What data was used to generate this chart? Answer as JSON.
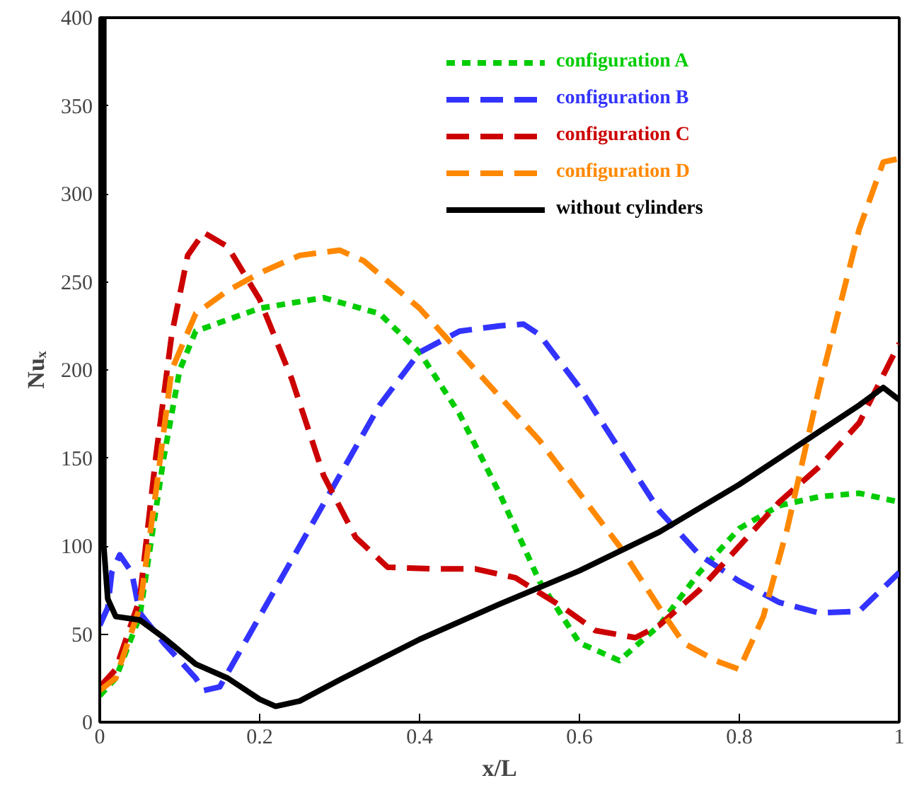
{
  "chart_data": {
    "type": "line",
    "xlabel": "x/L",
    "ylabel": "Nuₓ",
    "xlim": [
      0,
      1
    ],
    "ylim": [
      0,
      400
    ],
    "xticks": [
      0,
      0.2,
      0.4,
      0.6,
      0.8,
      1
    ],
    "yticks": [
      0,
      50,
      100,
      150,
      200,
      250,
      300,
      350,
      400
    ],
    "grid": false,
    "legend": "top right",
    "series": [
      {
        "name": "configuration A",
        "color": "#00cc00",
        "line_style": "dotted",
        "x": [
          0,
          0.02,
          0.05,
          0.08,
          0.1,
          0.12,
          0.2,
          0.28,
          0.35,
          0.4,
          0.45,
          0.5,
          0.55,
          0.6,
          0.65,
          0.7,
          0.75,
          0.8,
          0.85,
          0.9,
          0.95,
          1.0
        ],
        "values": [
          15,
          25,
          60,
          150,
          200,
          222,
          235,
          241,
          232,
          210,
          175,
          130,
          80,
          45,
          35,
          55,
          85,
          110,
          123,
          128,
          130,
          125
        ]
      },
      {
        "name": "configuration B",
        "color": "#3333ff",
        "line_style": "dashed",
        "x": [
          0,
          0.01,
          0.015,
          0.025,
          0.04,
          0.05,
          0.08,
          0.1,
          0.12,
          0.13,
          0.15,
          0.2,
          0.25,
          0.3,
          0.35,
          0.4,
          0.45,
          0.5,
          0.53,
          0.55,
          0.6,
          0.65,
          0.7,
          0.75,
          0.8,
          0.85,
          0.9,
          0.95,
          1.0
        ],
        "values": [
          55,
          65,
          85,
          95,
          85,
          62,
          45,
          35,
          25,
          18,
          20,
          60,
          100,
          140,
          180,
          210,
          222,
          225,
          226,
          220,
          190,
          155,
          120,
          95,
          80,
          68,
          62,
          63,
          85
        ]
      },
      {
        "name": "configuration C",
        "color": "#cc0000",
        "line_style": "dashed",
        "x": [
          0,
          0.02,
          0.05,
          0.07,
          0.09,
          0.11,
          0.13,
          0.16,
          0.2,
          0.24,
          0.28,
          0.32,
          0.36,
          0.42,
          0.47,
          0.52,
          0.58,
          0.62,
          0.67,
          0.7,
          0.75,
          0.8,
          0.85,
          0.9,
          0.95,
          1.0
        ],
        "values": [
          20,
          30,
          70,
          150,
          220,
          265,
          278,
          270,
          240,
          195,
          140,
          105,
          88,
          87,
          87,
          82,
          65,
          52,
          48,
          55,
          75,
          100,
          125,
          145,
          170,
          215
        ]
      },
      {
        "name": "configuration D",
        "color": "#ff8800",
        "line_style": "dashed",
        "x": [
          0,
          0.02,
          0.05,
          0.07,
          0.09,
          0.12,
          0.16,
          0.2,
          0.25,
          0.3,
          0.33,
          0.4,
          0.45,
          0.5,
          0.55,
          0.6,
          0.65,
          0.7,
          0.73,
          0.77,
          0.8,
          0.83,
          0.86,
          0.9,
          0.95,
          0.98,
          1.0
        ],
        "values": [
          18,
          25,
          65,
          130,
          200,
          232,
          245,
          255,
          265,
          268,
          262,
          235,
          210,
          185,
          160,
          130,
          100,
          65,
          45,
          35,
          30,
          60,
          110,
          190,
          280,
          318,
          320
        ]
      },
      {
        "name": "without cylinders",
        "color": "#000000",
        "line_style": "solid",
        "x": [
          0.005,
          0.005,
          0.01,
          0.02,
          0.05,
          0.08,
          0.12,
          0.16,
          0.2,
          0.22,
          0.25,
          0.3,
          0.4,
          0.5,
          0.6,
          0.7,
          0.8,
          0.9,
          0.95,
          0.98,
          1.0
        ],
        "values": [
          400,
          100,
          70,
          60,
          58,
          48,
          33,
          25,
          13,
          9,
          12,
          24,
          47,
          67,
          86,
          108,
          135,
          165,
          180,
          190,
          183
        ]
      }
    ]
  }
}
